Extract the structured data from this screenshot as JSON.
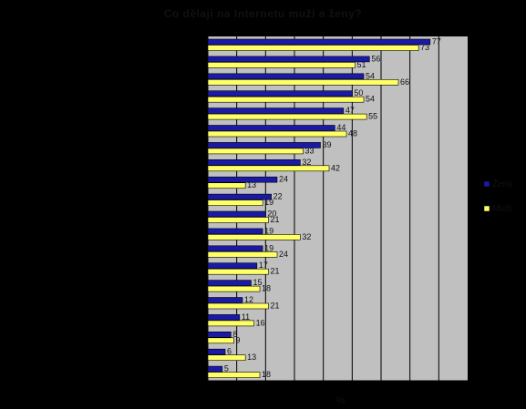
{
  "chart_data": {
    "type": "bar",
    "orientation": "horizontal",
    "title": "Co dělají na Internetu muži a ženy?",
    "xlabel": "%",
    "ylabel": "",
    "xlim": [
      0,
      90
    ],
    "grid": true,
    "legend_placement": "right",
    "categories": [
      "",
      "",
      "",
      "",
      "",
      "",
      "",
      "",
      "",
      "",
      "",
      "",
      "",
      "",
      "",
      "",
      "",
      "",
      "",
      ""
    ],
    "series": [
      {
        "name": "Ženy",
        "color": "#1a1aa6",
        "values": [
          77,
          56,
          54,
          50,
          47,
          44,
          39,
          32,
          24,
          22,
          20,
          19,
          19,
          17,
          15,
          12,
          11,
          8,
          6,
          5
        ]
      },
      {
        "name": "Muži",
        "color": "#ffff66",
        "values": [
          73,
          51,
          66,
          54,
          55,
          48,
          33,
          42,
          13,
          19,
          21,
          32,
          24,
          21,
          18,
          21,
          16,
          9,
          13,
          18
        ]
      }
    ]
  }
}
